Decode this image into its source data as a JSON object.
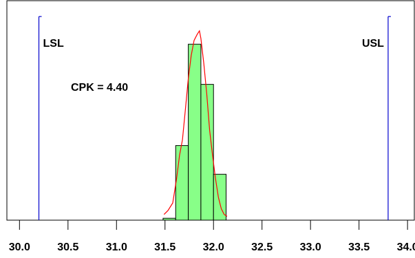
{
  "chart_data": {
    "type": "bar",
    "subtype": "histogram-capability",
    "x_ticks": [
      "30.0",
      "30.5",
      "31.0",
      "31.5",
      "32.0",
      "32.5",
      "33.0",
      "33.5",
      "34.0"
    ],
    "xlim": [
      29.87,
      34.07
    ],
    "ylim": [
      0,
      1
    ],
    "grid": false,
    "bins": [
      {
        "from": 31.48,
        "to": 31.61,
        "height": 0.01
      },
      {
        "from": 31.61,
        "to": 31.74,
        "height": 0.39
      },
      {
        "from": 31.74,
        "to": 31.87,
        "height": 0.92
      },
      {
        "from": 31.87,
        "to": 32.0,
        "height": 0.71
      },
      {
        "from": 32.0,
        "to": 32.13,
        "height": 0.24
      }
    ],
    "bar_color": "#88ff88",
    "fit_curve": {
      "color": "#ff0000",
      "points": [
        [
          31.49,
          0.03
        ],
        [
          31.53,
          0.05
        ],
        [
          31.58,
          0.09
        ],
        [
          31.62,
          0.22
        ],
        [
          31.65,
          0.34
        ],
        [
          31.68,
          0.42
        ],
        [
          31.71,
          0.58
        ],
        [
          31.74,
          0.74
        ],
        [
          31.77,
          0.86
        ],
        [
          31.8,
          0.94
        ],
        [
          31.83,
          0.97
        ],
        [
          31.855,
          0.99
        ],
        [
          31.87,
          0.95
        ],
        [
          31.9,
          0.82
        ],
        [
          31.93,
          0.66
        ],
        [
          31.96,
          0.47
        ],
        [
          31.99,
          0.34
        ],
        [
          32.02,
          0.22
        ],
        [
          32.05,
          0.12
        ],
        [
          32.08,
          0.06
        ],
        [
          32.11,
          0.03
        ],
        [
          32.14,
          0.02
        ]
      ]
    },
    "spec_limits": [
      {
        "label": "LSL",
        "value": 30.2,
        "color": "#0000cc"
      },
      {
        "label": "USL",
        "value": 33.8,
        "color": "#0000cc"
      }
    ],
    "annotation": "CPK = 4.40"
  }
}
